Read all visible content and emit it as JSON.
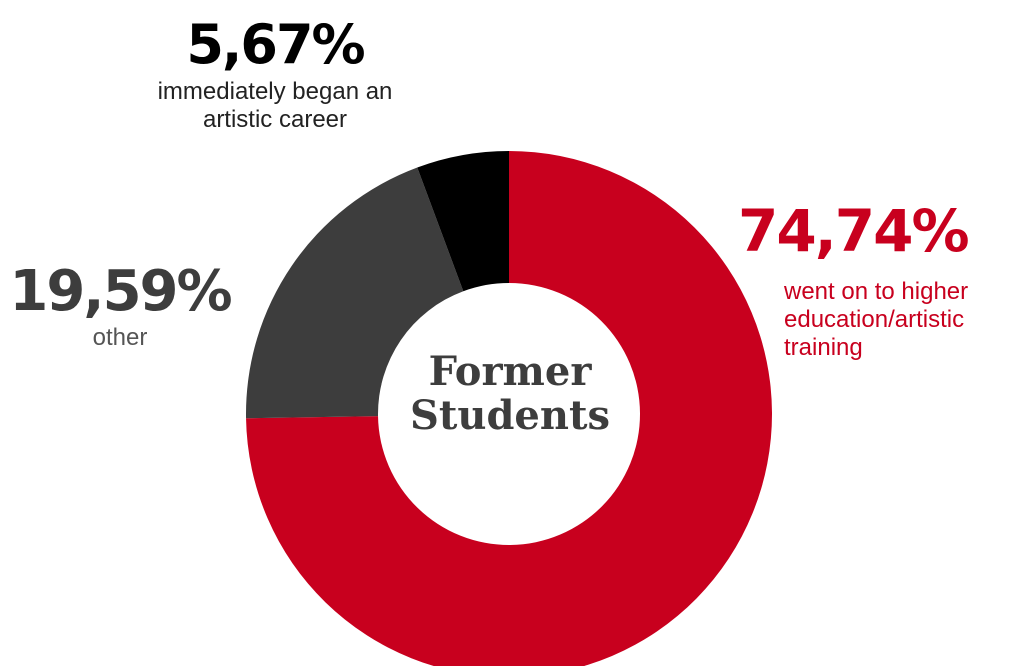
{
  "chart_data": {
    "type": "pie",
    "donut": true,
    "center_label": [
      "Former",
      "Students"
    ],
    "slices": [
      {
        "value": 74.74,
        "label": "74,74%",
        "description": "went on to higher education/artistic training",
        "description_lines": [
          "went on to higher",
          "education/artistic",
          "training"
        ],
        "color": "#c8001e"
      },
      {
        "value": 19.59,
        "label": "19,59%",
        "description": "other",
        "description_lines": [
          "other"
        ],
        "color": "#3d3d3d"
      },
      {
        "value": 5.67,
        "label": "5,67%",
        "description": "immediately began an artistic career",
        "description_lines": [
          "immediately began an",
          "artistic career"
        ],
        "color": "#000000"
      }
    ],
    "start_angle": "12 o'clock",
    "direction": "clockwise"
  }
}
